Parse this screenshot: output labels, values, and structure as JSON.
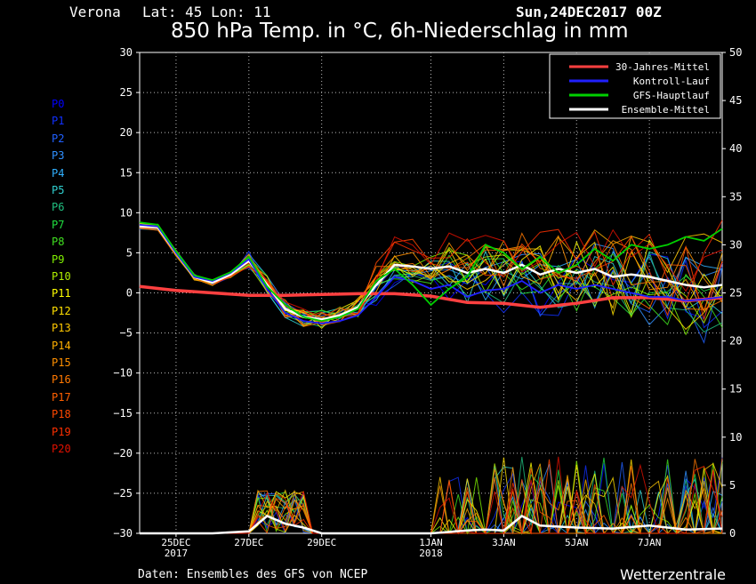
{
  "header": {
    "location": "Verona",
    "coords": "Lat: 45 Lon: 11",
    "run": "Sun,24DEC2017 00Z",
    "title": "850 hPa Temp. in °C, 6h-Niederschlag in mm"
  },
  "footer": {
    "source": "Daten: Ensembles des GFS von NCEP",
    "brand": "Wetterzentrale"
  },
  "members": [
    {
      "name": "P0",
      "color": "#0000ff"
    },
    {
      "name": "P1",
      "color": "#1030ff"
    },
    {
      "name": "P2",
      "color": "#2060ff"
    },
    {
      "name": "P3",
      "color": "#3090ff"
    },
    {
      "name": "P4",
      "color": "#30b0ff"
    },
    {
      "name": "P5",
      "color": "#30d0d0"
    },
    {
      "name": "P6",
      "color": "#20c080"
    },
    {
      "name": "P7",
      "color": "#20e040"
    },
    {
      "name": "P8",
      "color": "#40e020"
    },
    {
      "name": "P9",
      "color": "#80f000"
    },
    {
      "name": "P10",
      "color": "#b0f000"
    },
    {
      "name": "P11",
      "color": "#ffff00"
    },
    {
      "name": "P12",
      "color": "#ffe000"
    },
    {
      "name": "P13",
      "color": "#ffc800"
    },
    {
      "name": "P14",
      "color": "#ffb000"
    },
    {
      "name": "P15",
      "color": "#ff9000"
    },
    {
      "name": "P16",
      "color": "#ff7800"
    },
    {
      "name": "P17",
      "color": "#ff6000"
    },
    {
      "name": "P18",
      "color": "#ff4800"
    },
    {
      "name": "P19",
      "color": "#ff3000"
    },
    {
      "name": "P20",
      "color": "#e01000"
    }
  ],
  "chart_data": {
    "type": "line",
    "title": "850 hPa Temp. in °C, 6h-Niederschlag in mm",
    "x_unit": "days since 24DEC2017 00Z",
    "xlim": [
      0,
      16
    ],
    "ylim_left": [
      -30,
      30
    ],
    "ylim_right": [
      0,
      50
    ],
    "yticks_left": [
      30,
      25,
      20,
      15,
      10,
      5,
      0,
      -5,
      -10,
      -15,
      -20,
      -25,
      -30
    ],
    "yticks_right": [
      50,
      45,
      40,
      35,
      30,
      25,
      20,
      15,
      10,
      5,
      0
    ],
    "xticks": [
      {
        "x": 1,
        "label": "25DEC",
        "sub": "2017"
      },
      {
        "x": 3,
        "label": "27DEC",
        "sub": ""
      },
      {
        "x": 5,
        "label": "29DEC",
        "sub": ""
      },
      {
        "x": 8,
        "label": "1JAN",
        "sub": "2018"
      },
      {
        "x": 10,
        "label": "3JAN",
        "sub": ""
      },
      {
        "x": 12,
        "label": "5JAN",
        "sub": ""
      },
      {
        "x": 14,
        "label": "7JAN",
        "sub": ""
      }
    ],
    "legend": {
      "position": "top-right",
      "entries": [
        {
          "label": "30-Jahres-Mittel",
          "color": "#ff4040"
        },
        {
          "label": "Kontroll-Lauf",
          "color": "#2020ff"
        },
        {
          "label": "GFS-Hauptlauf",
          "color": "#00d000"
        },
        {
          "label": "Ensemble-Mittel",
          "color": "#ffffff"
        }
      ]
    },
    "series": [
      {
        "name": "30-Jahres-Mittel",
        "axis": "left",
        "color": "#ff4040",
        "x": [
          0,
          1,
          2,
          3,
          4,
          5,
          6,
          7,
          8,
          9,
          10,
          11,
          12,
          13,
          14,
          15,
          16
        ],
        "y": [
          0.8,
          0.3,
          0.0,
          -0.3,
          -0.3,
          -0.2,
          -0.1,
          -0.1,
          -0.4,
          -1.2,
          -1.3,
          -1.8,
          -1.3,
          -0.6,
          -0.6,
          -1.0,
          -0.6
        ]
      },
      {
        "name": "Ensemble-Mittel",
        "axis": "left",
        "color": "#ffffff",
        "x": [
          0,
          0.5,
          1,
          1.5,
          2,
          2.5,
          3,
          3.5,
          4,
          4.5,
          5,
          5.5,
          6,
          6.5,
          7,
          7.5,
          8,
          8.5,
          9,
          9.5,
          10,
          10.5,
          11,
          11.5,
          12,
          12.5,
          13,
          13.5,
          14,
          14.5,
          15,
          15.5,
          16
        ],
        "y": [
          8.3,
          8.2,
          5.0,
          2.0,
          1.3,
          2.3,
          4.0,
          1.0,
          -2.0,
          -3.0,
          -3.3,
          -2.8,
          -1.8,
          1.0,
          3.5,
          3.3,
          3.0,
          3.3,
          2.5,
          3.0,
          2.5,
          3.5,
          2.3,
          3.0,
          2.5,
          3.0,
          2.0,
          2.3,
          2.0,
          1.5,
          1.0,
          0.7,
          1.0
        ]
      },
      {
        "name": "Kontroll-Lauf",
        "axis": "left",
        "color": "#2020ff",
        "x": [
          0,
          0.5,
          1,
          1.5,
          2,
          2.5,
          3,
          3.5,
          4,
          4.5,
          5,
          5.5,
          6,
          6.5,
          7,
          7.5,
          8,
          8.5,
          9,
          9.5,
          10,
          10.5,
          11,
          11.5,
          12,
          12.5,
          13,
          13.5,
          14,
          14.5,
          15,
          15.5,
          16
        ],
        "y": [
          8.5,
          8.3,
          5.0,
          2.0,
          1.5,
          2.5,
          4.2,
          0.5,
          -2.5,
          -3.5,
          -3.8,
          -3.5,
          -2.8,
          -0.5,
          2.0,
          1.5,
          0.5,
          1.0,
          -0.5,
          0.3,
          0.5,
          1.5,
          0.0,
          1.0,
          0.5,
          1.0,
          0.5,
          0.0,
          -0.5,
          -0.5,
          -1.0,
          -0.8,
          -0.5
        ]
      },
      {
        "name": "GFS-Hauptlauf",
        "axis": "left",
        "color": "#00d000",
        "x": [
          0,
          0.5,
          1,
          1.5,
          2,
          2.5,
          3,
          3.5,
          4,
          4.5,
          5,
          5.5,
          6,
          6.5,
          7,
          7.5,
          8,
          8.5,
          9,
          9.5,
          10,
          10.5,
          11,
          11.5,
          12,
          12.5,
          13,
          13.5,
          14,
          14.5,
          15,
          15.5,
          16
        ],
        "y": [
          8.8,
          8.5,
          5.2,
          2.2,
          1.6,
          2.6,
          4.5,
          0.8,
          -1.5,
          -3.0,
          -3.5,
          -3.0,
          -2.0,
          1.5,
          3.0,
          1.0,
          -1.5,
          0.5,
          2.0,
          6.0,
          5.0,
          3.0,
          4.5,
          2.5,
          3.5,
          5.5,
          4.0,
          6.0,
          5.5,
          6.0,
          7.0,
          6.5,
          8.0
        ]
      },
      {
        "name": "Ensemble-Mittel Niederschlag",
        "axis": "right",
        "color": "#ffffff",
        "x": [
          0,
          1,
          2,
          3,
          3.5,
          4,
          4.5,
          5,
          6,
          7,
          8,
          9,
          9.5,
          10,
          10.5,
          11,
          12,
          13,
          14,
          15,
          16
        ],
        "y": [
          0,
          0,
          0,
          0.2,
          1.8,
          1.0,
          0.6,
          0,
          0,
          0,
          0,
          0.3,
          0.4,
          0.3,
          1.8,
          0.8,
          0.6,
          0.5,
          0.8,
          0.4,
          0.5
        ]
      }
    ]
  }
}
